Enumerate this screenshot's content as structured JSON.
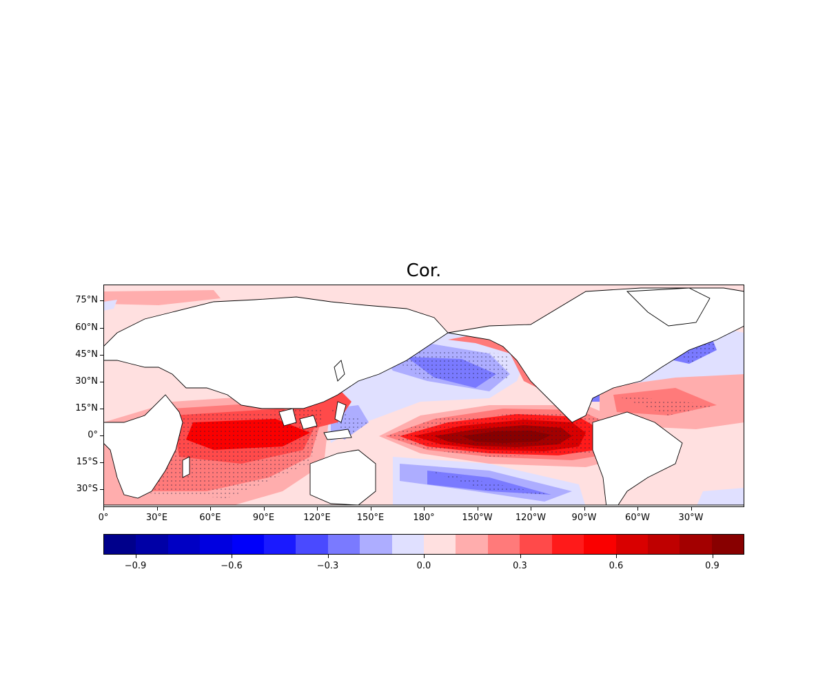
{
  "title": "Cor.",
  "lat_ticks": [
    "75°N",
    "60°N",
    "45°N",
    "30°N",
    "15°N",
    "0°",
    "15°S",
    "30°S"
  ],
  "lat_values": [
    75,
    60,
    45,
    30,
    15,
    0,
    -15,
    -30
  ],
  "lon_ticks": [
    "0°",
    "30°E",
    "60°E",
    "90°E",
    "120°E",
    "150°E",
    "180°",
    "150°W",
    "120°W",
    "90°W",
    "60°W",
    "30°W"
  ],
  "lon_values": [
    0,
    30,
    60,
    90,
    120,
    150,
    180,
    210,
    240,
    270,
    300,
    330
  ],
  "colorbar": {
    "min": -1.0,
    "max": 1.0,
    "step": 0.1,
    "tick_labels": [
      "−0.9",
      "−0.6",
      "−0.3",
      "0.0",
      "0.3",
      "0.6",
      "0.9"
    ],
    "tick_values": [
      -0.9,
      -0.6,
      -0.3,
      0.0,
      0.3,
      0.6,
      0.9
    ],
    "colors": [
      "#00008b",
      "#0000a6",
      "#0000c4",
      "#0000e0",
      "#0000fa",
      "#1a1aff",
      "#4a4aff",
      "#7a7aff",
      "#adadff",
      "#e0e0ff",
      "#ffe0e0",
      "#ffadad",
      "#ff7a7a",
      "#ff4a4a",
      "#ff1a1a",
      "#fa0000",
      "#d90000",
      "#bf0000",
      "#a30000",
      "#880000"
    ]
  }
}
